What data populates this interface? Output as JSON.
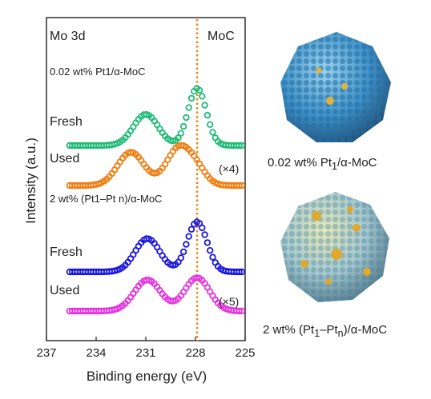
{
  "panel_label": "Mo 3d",
  "ref_label": "MoC",
  "captions": {
    "top": "0.02 wt% Pt1/α-MoC",
    "bottom": "2 wt% (Pt1–Pt n)/α-MoC"
  },
  "chart_data": {
    "type": "scatter",
    "xlabel": "Binding energy (eV)",
    "ylabel": "Intensity (a.u.)",
    "xlim": [
      237,
      225
    ],
    "x_reversed": true,
    "x_ticks": [
      237,
      234,
      231,
      228,
      225
    ],
    "reference_line_x": 227.9,
    "groups": [
      {
        "label": "0.02 wt% Pt1/α-MoC"
      },
      {
        "label": "2 wt% (Pt1–Pt n)/α-MoC"
      }
    ],
    "series": [
      {
        "name": "Fresh",
        "group": 0,
        "color": "#1fbb77",
        "baseline": 0.0,
        "peaks": [
          {
            "center": 231.0,
            "height": 0.3,
            "width": 0.75
          },
          {
            "center": 227.9,
            "height": 0.55,
            "width": 0.55
          }
        ]
      },
      {
        "name": "Used",
        "group": 0,
        "color": "#f07d0f",
        "scale_note": "(×4)",
        "baseline": 0.0,
        "peaks": [
          {
            "center": 231.9,
            "height": 0.32,
            "width": 0.8
          },
          {
            "center": 229.0,
            "height": 0.36,
            "width": 0.75
          },
          {
            "center": 227.9,
            "height": 0.12,
            "width": 0.6
          }
        ]
      },
      {
        "name": "Fresh",
        "group": 1,
        "color": "#1a16dc",
        "baseline": 0.0,
        "peaks": [
          {
            "center": 230.9,
            "height": 0.32,
            "width": 0.75
          },
          {
            "center": 227.9,
            "height": 0.48,
            "width": 0.6
          }
        ]
      },
      {
        "name": "Used",
        "group": 1,
        "color": "#e632e0",
        "scale_note": "(×5)",
        "baseline": 0.0,
        "peaks": [
          {
            "center": 230.9,
            "height": 0.3,
            "width": 0.8
          },
          {
            "center": 227.9,
            "height": 0.32,
            "width": 0.75
          }
        ]
      }
    ]
  }
}
